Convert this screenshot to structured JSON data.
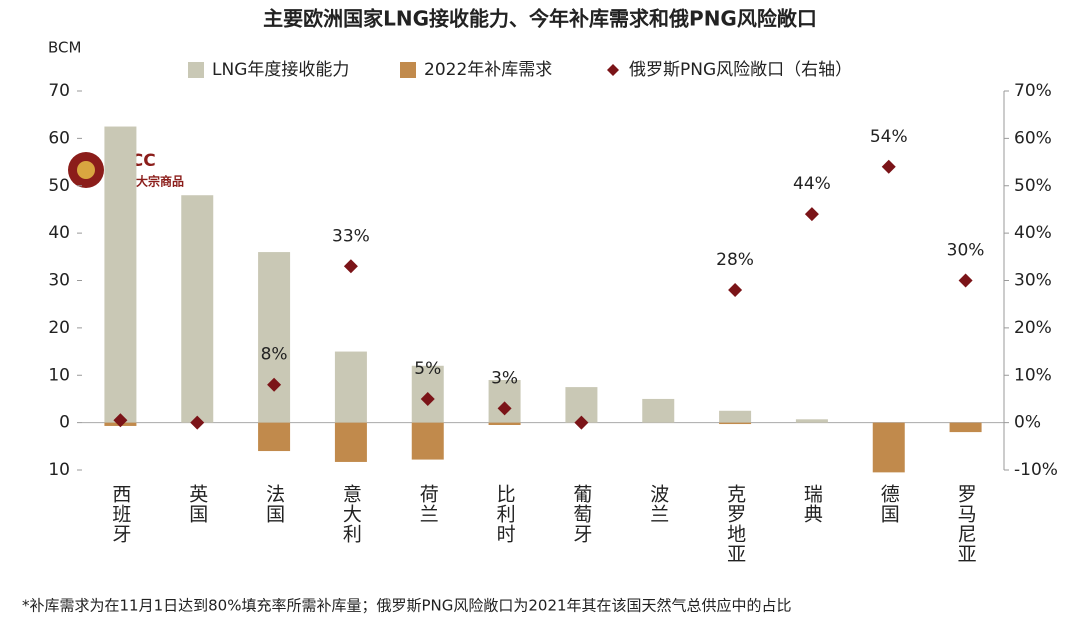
{
  "chart_data": {
    "type": "bar",
    "title": "主要欧洲国家LNG接收能力、今年补库需求和俄PNG风险敞口",
    "y_unit": "BCM",
    "categories": [
      "西班牙",
      "英国",
      "法国",
      "意大利",
      "荷兰",
      "比利时",
      "葡萄牙",
      "波兰",
      "克罗地亚",
      "瑞典",
      "德国",
      "罗马尼亚"
    ],
    "series": [
      {
        "name": "LNG年度接收能力",
        "type": "bar",
        "color": "#c9c8b5",
        "values": [
          62.5,
          48,
          36,
          15,
          12,
          9,
          7.5,
          5,
          2.5,
          0.7,
          0,
          0
        ]
      },
      {
        "name": "2022年补库需求",
        "type": "bar",
        "color": "#c18a4c",
        "values": [
          -0.7,
          0,
          -6,
          -8.3,
          -7.8,
          -0.5,
          0,
          0,
          -0.3,
          0,
          -10.5,
          -2
        ]
      },
      {
        "name": "俄罗斯PNG风险敞口（右轴）",
        "type": "scatter",
        "axis": "y2",
        "color": "#7b1418",
        "values": [
          0.5,
          0,
          8,
          33,
          5,
          3,
          0,
          null,
          28,
          44,
          54,
          30
        ],
        "value_labels": [
          null,
          null,
          "8%",
          "33%",
          "5%",
          "3%",
          null,
          null,
          "28%",
          "44%",
          "54%",
          "30%"
        ]
      }
    ],
    "ylim": [
      -10,
      70
    ],
    "yticks": [
      {
        "value": -10,
        "label": "10"
      },
      0,
      10,
      20,
      30,
      40,
      50,
      60,
      70
    ],
    "y2lim": [
      -10,
      70
    ],
    "y2ticks": [
      {
        "value": -10,
        "label": "-10%"
      },
      {
        "value": 0,
        "label": "0%"
      },
      {
        "value": 10,
        "label": "10%"
      },
      {
        "value": 20,
        "label": "20%"
      },
      {
        "value": 30,
        "label": "30%"
      },
      {
        "value": 40,
        "label": "40%"
      },
      {
        "value": 50,
        "label": "50%"
      },
      {
        "value": 60,
        "label": "60%"
      },
      {
        "value": 70,
        "label": "70%"
      }
    ],
    "legend": "top",
    "watermark": {
      "name": "CICC",
      "subtitle": "中金大宗商品"
    },
    "note": "*补库需求为在11月1日达到80%填充率所需补库量；俄罗斯PNG风险敞口为2021年其在该国天然气总供应中的占比"
  }
}
